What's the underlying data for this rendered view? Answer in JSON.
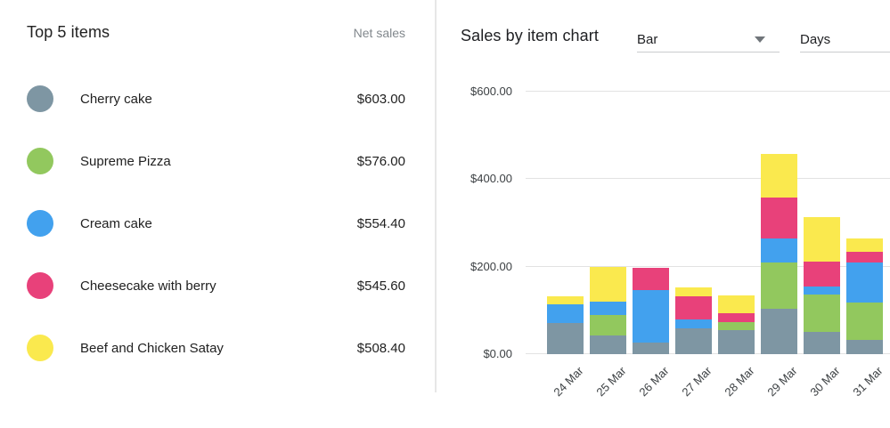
{
  "left_panel": {
    "title": "Top 5 items",
    "column_header": "Net sales",
    "items": [
      {
        "name": "Cherry cake",
        "net_sales": "$603.00",
        "color": "#7E96A3"
      },
      {
        "name": "Supreme Pizza",
        "net_sales": "$576.00",
        "color": "#92C85E"
      },
      {
        "name": "Cream cake",
        "net_sales": "$554.40",
        "color": "#42A1EE"
      },
      {
        "name": "Cheesecake with berry",
        "net_sales": "$545.60",
        "color": "#E8417A"
      },
      {
        "name": "Beef and Chicken Satay",
        "net_sales": "$508.40",
        "color": "#FAE94E"
      }
    ]
  },
  "right_panel": {
    "title": "Sales by item chart",
    "chart_type_select": {
      "value": "Bar"
    },
    "period_select": {
      "value": "Days"
    }
  },
  "chart_data": {
    "type": "bar",
    "stacked": true,
    "title": "Sales by item chart",
    "categories": [
      "24 Mar",
      "25 Mar",
      "26 Mar",
      "27 Mar",
      "28 Mar",
      "29 Mar",
      "30 Mar",
      "31 Mar"
    ],
    "series": [
      {
        "name": "Cherry cake",
        "color": "#7E96A3",
        "values": [
          72,
          43,
          27,
          59,
          55,
          103,
          50,
          33
        ]
      },
      {
        "name": "Supreme Pizza",
        "color": "#92C85E",
        "values": [
          0,
          47,
          0,
          0,
          19,
          107,
          86,
          86
        ]
      },
      {
        "name": "Cream cake",
        "color": "#42A1EE",
        "values": [
          41,
          30,
          120,
          20,
          0,
          55,
          18,
          90
        ]
      },
      {
        "name": "Cheesecake with berry",
        "color": "#E8417A",
        "values": [
          0,
          0,
          51,
          54,
          20,
          93,
          57,
          26
        ]
      },
      {
        "name": "Beef and Chicken Satay",
        "color": "#FAE94E",
        "values": [
          20,
          80,
          0,
          20,
          41,
          100,
          102,
          30
        ]
      }
    ],
    "y_ticks": [
      {
        "value": 0,
        "label": "$0.00"
      },
      {
        "value": 200,
        "label": "$200.00"
      },
      {
        "value": 400,
        "label": "$400.00"
      },
      {
        "value": 600,
        "label": "$600.00"
      }
    ],
    "ylim": [
      0,
      600
    ],
    "y_unit": "USD",
    "grid": true,
    "legend": "none",
    "x_tick_rotation": -45
  }
}
